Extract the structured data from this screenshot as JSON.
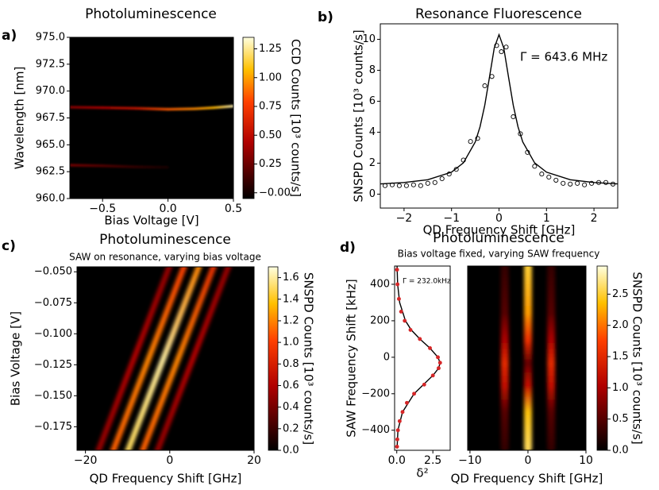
{
  "chart_data": [
    {
      "type": "heatmap",
      "panel_label": "a)",
      "title": "Photoluminescence",
      "xlabel": "Bias Voltage [V]",
      "ylabel": "Wavelength [nm]",
      "xlim": [
        -0.75,
        0.5
      ],
      "ylim": [
        960,
        975
      ],
      "xticks": [
        {
          "value": -0.5,
          "label": "−0.5"
        },
        {
          "value": 0,
          "label": "0.0"
        },
        0.5
      ],
      "yticks": [
        {
          "value": 960,
          "label": "960.0"
        },
        962.5,
        {
          "value": 965,
          "label": "965.0"
        },
        967.5,
        {
          "value": 970,
          "label": "970.0"
        },
        972.5,
        {
          "value": 975,
          "label": "975.0"
        }
      ],
      "colorbar": {
        "label": "CCD Counts [10³ counts/s]",
        "lim": [
          -0.05,
          1.35
        ],
        "ticks": [
          {
            "value": 0,
            "label": "−0.00"
          },
          0.25,
          {
            "value": 0.5,
            "label": "0.50"
          },
          0.75,
          {
            "value": 1,
            "label": "1.00"
          },
          1.25
        ]
      },
      "ridges": [
        {
          "x": [
            -0.75,
            -0.5,
            -0.25,
            0,
            0.2,
            0.35,
            0.5
          ],
          "y": [
            968.5,
            968.45,
            968.4,
            968.3,
            968.35,
            968.45,
            968.6
          ],
          "values": [
            0.35,
            0.45,
            0.55,
            0.85,
            0.95,
            1.05,
            1.3
          ]
        },
        {
          "x": [
            -0.75,
            -0.5,
            -0.25,
            0
          ],
          "y": [
            963.1,
            963.05,
            962.95,
            962.9
          ],
          "values": [
            0.3,
            0.2,
            0.1,
            0.02
          ]
        }
      ]
    },
    {
      "type": "line",
      "panel_label": "b)",
      "title": "Resonance Fluorescence",
      "xlabel": "QD Frequency Shift [GHz]",
      "ylabel": "SNSPD Counts [10³ counts/s]",
      "annotation": "Γ  = 643.6 MHz",
      "xlim": [
        -2.5,
        2.5
      ],
      "ylim": [
        -0.9,
        11
      ],
      "xticks": [
        {
          "value": -2,
          "label": "−2"
        },
        {
          "value": -1,
          "label": "−1"
        },
        0,
        1,
        2
      ],
      "yticks": [
        0,
        2,
        4,
        6,
        8,
        10
      ],
      "series": [
        {
          "marker": "circle-open",
          "color": "#000000",
          "x": [
            -2.4,
            -2.25,
            -2.1,
            -1.95,
            -1.8,
            -1.65,
            -1.5,
            -1.35,
            -1.2,
            -1.05,
            -0.9,
            -0.75,
            -0.6,
            -0.45,
            -0.3,
            -0.15,
            -0.05,
            0.05,
            0.15,
            0.3,
            0.45,
            0.6,
            0.75,
            0.9,
            1.05,
            1.2,
            1.35,
            1.5,
            1.65,
            1.8,
            1.95,
            2.1,
            2.25,
            2.4
          ],
          "values": [
            0.55,
            0.6,
            0.55,
            0.55,
            0.6,
            0.55,
            0.7,
            0.75,
            1.0,
            1.3,
            1.6,
            2.2,
            3.4,
            3.6,
            7.0,
            7.6,
            9.6,
            9.2,
            9.5,
            5.0,
            3.9,
            2.7,
            1.8,
            1.3,
            1.1,
            0.9,
            0.7,
            0.65,
            0.7,
            0.6,
            0.7,
            0.75,
            0.75,
            0.65
          ]
        },
        {
          "color": "#000000",
          "x": [
            -2.5,
            -2,
            -1.5,
            -1,
            -0.75,
            -0.5,
            -0.4,
            -0.3,
            -0.2,
            -0.1,
            0,
            0.1,
            0.2,
            0.3,
            0.4,
            0.5,
            0.75,
            1,
            1.5,
            2,
            2.5
          ],
          "values": [
            0.66,
            0.75,
            0.93,
            1.42,
            2.02,
            3.37,
            4.35,
            5.74,
            7.57,
            9.44,
            10.3,
            9.44,
            7.57,
            5.74,
            4.35,
            3.37,
            2.02,
            1.42,
            0.93,
            0.75,
            0.66
          ]
        }
      ]
    },
    {
      "type": "heatmap",
      "panel_label": "c)",
      "title": "Photoluminescence",
      "subtitle": "SAW on resonance, varying bias voltage",
      "xlabel": "QD Frequency Shift [GHz]",
      "ylabel": "Bias Voltage [V]",
      "xlim": [
        -22,
        20
      ],
      "ylim": [
        -0.194,
        -0.046
      ],
      "xticks": [
        {
          "value": -20,
          "label": "−20"
        },
        0,
        20
      ],
      "yticks": [
        {
          "value": -0.175,
          "label": "−0.175"
        },
        {
          "value": -0.15,
          "label": "−0.150"
        },
        {
          "value": -0.125,
          "label": "−0.125"
        },
        {
          "value": -0.1,
          "label": "−0.100"
        },
        {
          "value": -0.075,
          "label": "−0.075"
        },
        {
          "value": -0.05,
          "label": "−0.050"
        }
      ],
      "colorbar": {
        "label": "SNSPD Counts [10³ counts/s]",
        "lim": [
          0,
          1.7
        ],
        "ticks": [
          {
            "value": 0,
            "label": "0.0"
          },
          0.2,
          0.4,
          0.6,
          0.8,
          {
            "value": 1,
            "label": "1.0"
          },
          1.2,
          1.4,
          1.6
        ]
      },
      "ridges": [
        {
          "x": [
            -17,
            -8.5,
            0
          ],
          "y": [
            -0.195,
            -0.12,
            -0.045
          ],
          "values": [
            0.5,
            0.6,
            0.5
          ]
        },
        {
          "x": [
            -3,
            5.5,
            14
          ],
          "y": [
            -0.195,
            -0.12,
            -0.045
          ],
          "values": [
            0.5,
            0.6,
            0.5
          ]
        },
        {
          "x": [
            -13.5,
            -5,
            3.5
          ],
          "y": [
            -0.195,
            -0.12,
            -0.045
          ],
          "values": [
            1.1,
            1.2,
            1.0
          ]
        },
        {
          "x": [
            -6.5,
            2,
            10.5
          ],
          "y": [
            -0.195,
            -0.12,
            -0.045
          ],
          "values": [
            1.1,
            1.2,
            0.9
          ]
        },
        {
          "x": [
            -10,
            -1.5,
            7
          ],
          "y": [
            -0.195,
            -0.12,
            -0.045
          ],
          "values": [
            1.5,
            1.6,
            1.2
          ]
        }
      ]
    },
    {
      "type": "line",
      "panel_label": "d)",
      "xlabel": "δ²",
      "ylabel": "SAW Frequency Shift [kHz]",
      "annotation": "Γ = 232.0kHz",
      "xlim": [
        -0.15,
        3.7
      ],
      "ylim": [
        -510,
        500
      ],
      "xticks": [
        {
          "value": 0,
          "label": "0.0"
        },
        2.5
      ],
      "yticks": [
        {
          "value": -400,
          "label": "−400"
        },
        {
          "value": -200,
          "label": "−200"
        },
        0,
        200,
        400
      ],
      "series": [
        {
          "color": "#000000",
          "y": [
            500,
            400,
            300,
            200,
            150,
            100,
            50,
            0,
            -30,
            -60,
            -100,
            -150,
            -200,
            -300,
            -400,
            -500
          ],
          "values": [
            0.02,
            0.06,
            0.2,
            0.6,
            1.0,
            1.6,
            2.3,
            2.85,
            3.0,
            2.9,
            2.5,
            1.85,
            1.2,
            0.4,
            0.08,
            0.02
          ]
        },
        {
          "marker": "dot",
          "color": "#d62728",
          "y": [
            480,
            400,
            320,
            250,
            200,
            150,
            100,
            50,
            0,
            -30,
            -60,
            -100,
            -150,
            -200,
            -250,
            -300,
            -350,
            -400,
            -450,
            -490
          ],
          "values": [
            0.02,
            0.05,
            0.15,
            0.3,
            0.55,
            0.95,
            1.6,
            2.3,
            2.85,
            3.0,
            2.9,
            2.5,
            1.9,
            1.2,
            0.7,
            0.4,
            0.2,
            0.08,
            0.04,
            0.02
          ]
        }
      ]
    },
    {
      "type": "heatmap",
      "title": "Photoluminescence",
      "subtitle": "Bias voltage fixed, varying SAW frequency",
      "xlabel": "QD Frequency Shift [GHz]",
      "xlim": [
        -10.4,
        10
      ],
      "ylim": [
        -510,
        500
      ],
      "xticks": [
        {
          "value": -10,
          "label": "−10"
        },
        0,
        10
      ],
      "colorbar": {
        "label": "SNSPD Counts [10³ counts/s]",
        "lim": [
          0,
          2.95
        ],
        "ticks": [
          {
            "value": 0,
            "label": "0.0"
          },
          0.5,
          {
            "value": 1,
            "label": "1.0"
          },
          1.5,
          {
            "value": 2,
            "label": "2.0"
          },
          2.5
        ]
      },
      "ridges": [
        {
          "x": [
            -4,
            -4,
            -4,
            -4,
            -4,
            -4,
            -4
          ],
          "y": [
            -500,
            -300,
            -150,
            -30,
            100,
            250,
            500
          ],
          "values": [
            0.3,
            0.5,
            1.2,
            1.5,
            1.0,
            0.5,
            0.3
          ]
        },
        {
          "x": [
            4,
            4,
            4,
            4,
            4,
            4,
            4
          ],
          "y": [
            -500,
            -300,
            -150,
            -30,
            100,
            250,
            500
          ],
          "values": [
            0.3,
            0.5,
            1.2,
            1.5,
            1.0,
            0.5,
            0.3
          ]
        },
        {
          "x": [
            0,
            0,
            0,
            0,
            0,
            0,
            0
          ],
          "y": [
            -500,
            -300,
            -150,
            -30,
            100,
            250,
            500
          ],
          "values": [
            2.6,
            2.4,
            1.2,
            0.6,
            1.6,
            2.2,
            2.5
          ]
        }
      ]
    }
  ]
}
